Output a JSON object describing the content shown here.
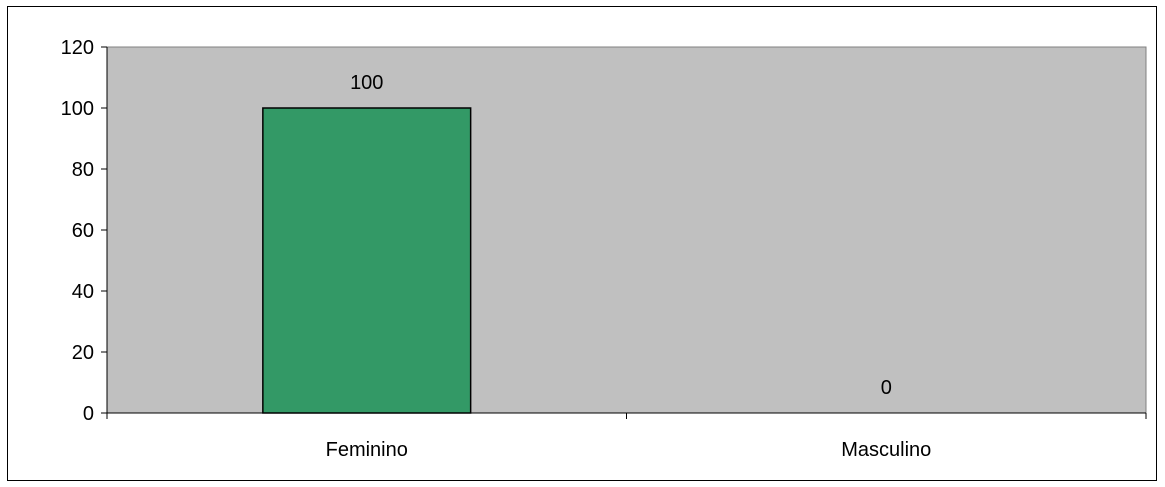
{
  "chart_data": {
    "type": "bar",
    "title": "",
    "xlabel": "",
    "ylabel": "",
    "categories": [
      "Feminino",
      "Masculino"
    ],
    "values": [
      100,
      0
    ],
    "data_labels": [
      "100",
      "0"
    ],
    "ylim": [
      0,
      120
    ],
    "yticks": [
      0,
      20,
      40,
      60,
      80,
      100,
      120
    ],
    "ytick_labels": [
      "0",
      "20",
      "40",
      "60",
      "80",
      "100",
      "120"
    ],
    "grid": false,
    "legend": "none",
    "colors": {
      "bar": "#339966",
      "plot_background": "#c0c0c0",
      "outline": "#000000"
    }
  }
}
